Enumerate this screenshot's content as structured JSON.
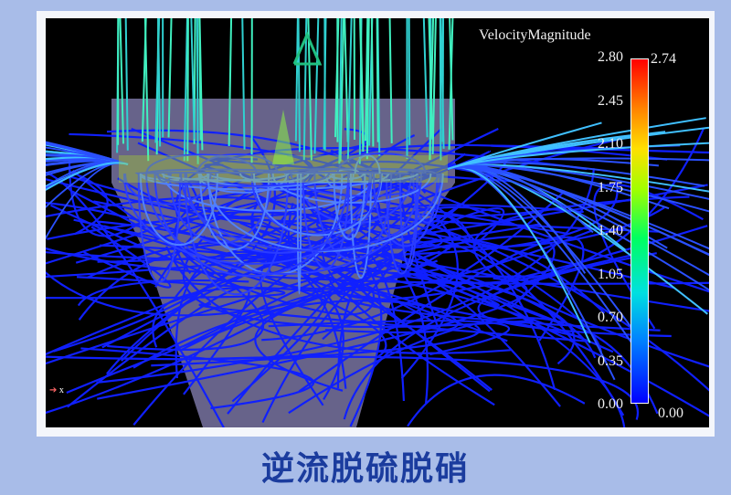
{
  "visualization": {
    "legend_title": "VelocityMagnitude",
    "scale_ticks": [
      "2.80",
      "2.45",
      "2.10",
      "1.75",
      "1.40",
      "1.05",
      "0.70",
      "0.35",
      "0.00"
    ],
    "max_label": "2.74",
    "min_label": "0.00",
    "colormap": [
      "#0000ff",
      "#00e0e0",
      "#00ff60",
      "#ffe000",
      "#ff0000"
    ],
    "axis_label": "x"
  },
  "caption": "逆流脱硫脱硝"
}
